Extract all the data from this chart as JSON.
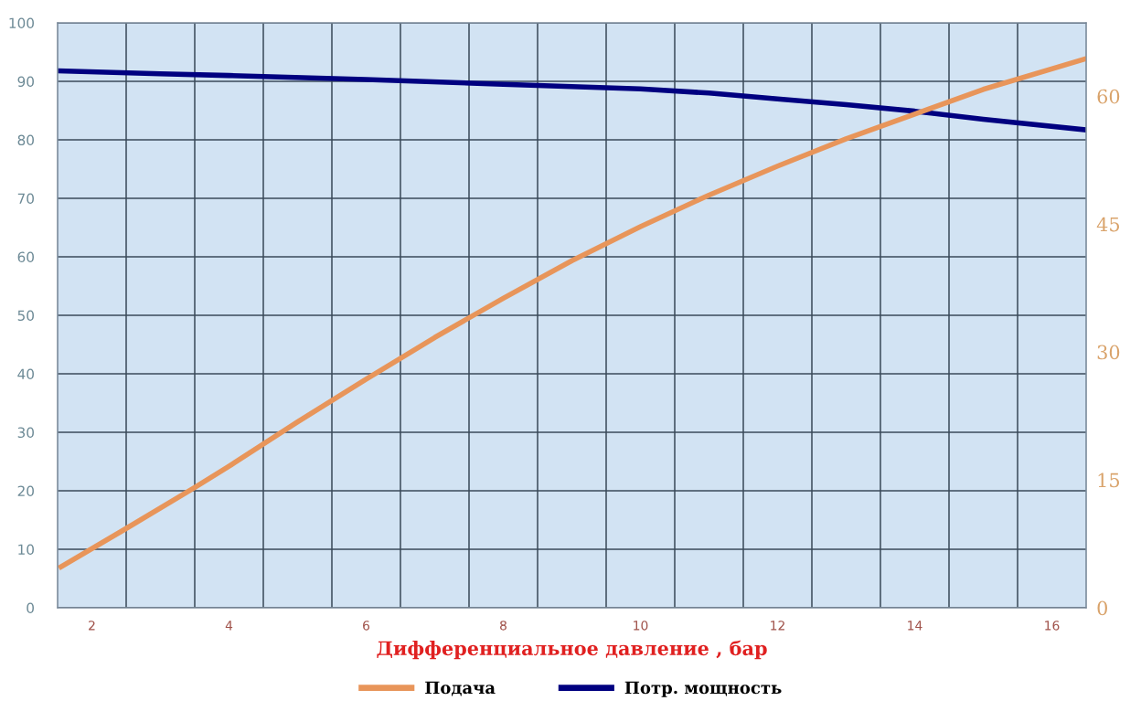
{
  "chart_data": {
    "type": "line",
    "xlabel": "Дифференциальное давление , бар",
    "xlim": [
      1.5,
      16.5
    ],
    "xticks": [
      2,
      4,
      6,
      8,
      10,
      12,
      14,
      16,
      {
        "value": 2.5,
        "label": null
      },
      {
        "value": 3.5,
        "label": null
      },
      {
        "value": 4.5,
        "label": null
      },
      {
        "value": 5.5,
        "label": null
      },
      {
        "value": 6.5,
        "label": null
      },
      {
        "value": 7.5,
        "label": null
      },
      {
        "value": 8.5,
        "label": null
      },
      {
        "value": 9.5,
        "label": null
      },
      {
        "value": 10.5,
        "label": null
      },
      {
        "value": 11.5,
        "label": null
      },
      {
        "value": 12.5,
        "label": null
      },
      {
        "value": 13.5,
        "label": null
      },
      {
        "value": 14.5,
        "label": null
      },
      {
        "value": 15.5,
        "label": null
      }
    ],
    "ylim": [
      0,
      100
    ],
    "yticks": [
      0,
      10,
      20,
      30,
      40,
      50,
      60,
      70,
      80,
      90,
      100
    ],
    "y2lim": [
      0,
      68.6
    ],
    "y2ticks": [
      0,
      15,
      30,
      45,
      60
    ],
    "grid": true,
    "legend": "bottom",
    "marker": "none",
    "line_style": "solid",
    "series": [
      {
        "name": "Подача",
        "color": "#e8955a",
        "axis": "y2",
        "x": [
          1.55,
          2.5,
          3.5,
          4,
          5,
          6,
          7,
          8,
          9,
          10,
          11,
          12,
          13,
          14,
          15,
          16.5
        ],
        "values": [
          4.8,
          9.3,
          14.1,
          16.6,
          21.8,
          26.8,
          31.7,
          36.3,
          40.7,
          44.7,
          48.4,
          51.8,
          55.0,
          57.9,
          60.8,
          64.4
        ]
      },
      {
        "name": "Потр. мощность",
        "color": "#000080",
        "axis": "y",
        "x": [
          1.5,
          3,
          4,
          6,
          8,
          10,
          11,
          12,
          13,
          14,
          15,
          16.5
        ],
        "values": [
          91.8,
          91.3,
          91.0,
          90.3,
          89.5,
          88.7,
          88.0,
          87.0,
          86.0,
          84.9,
          83.5,
          81.7
        ]
      }
    ]
  }
}
